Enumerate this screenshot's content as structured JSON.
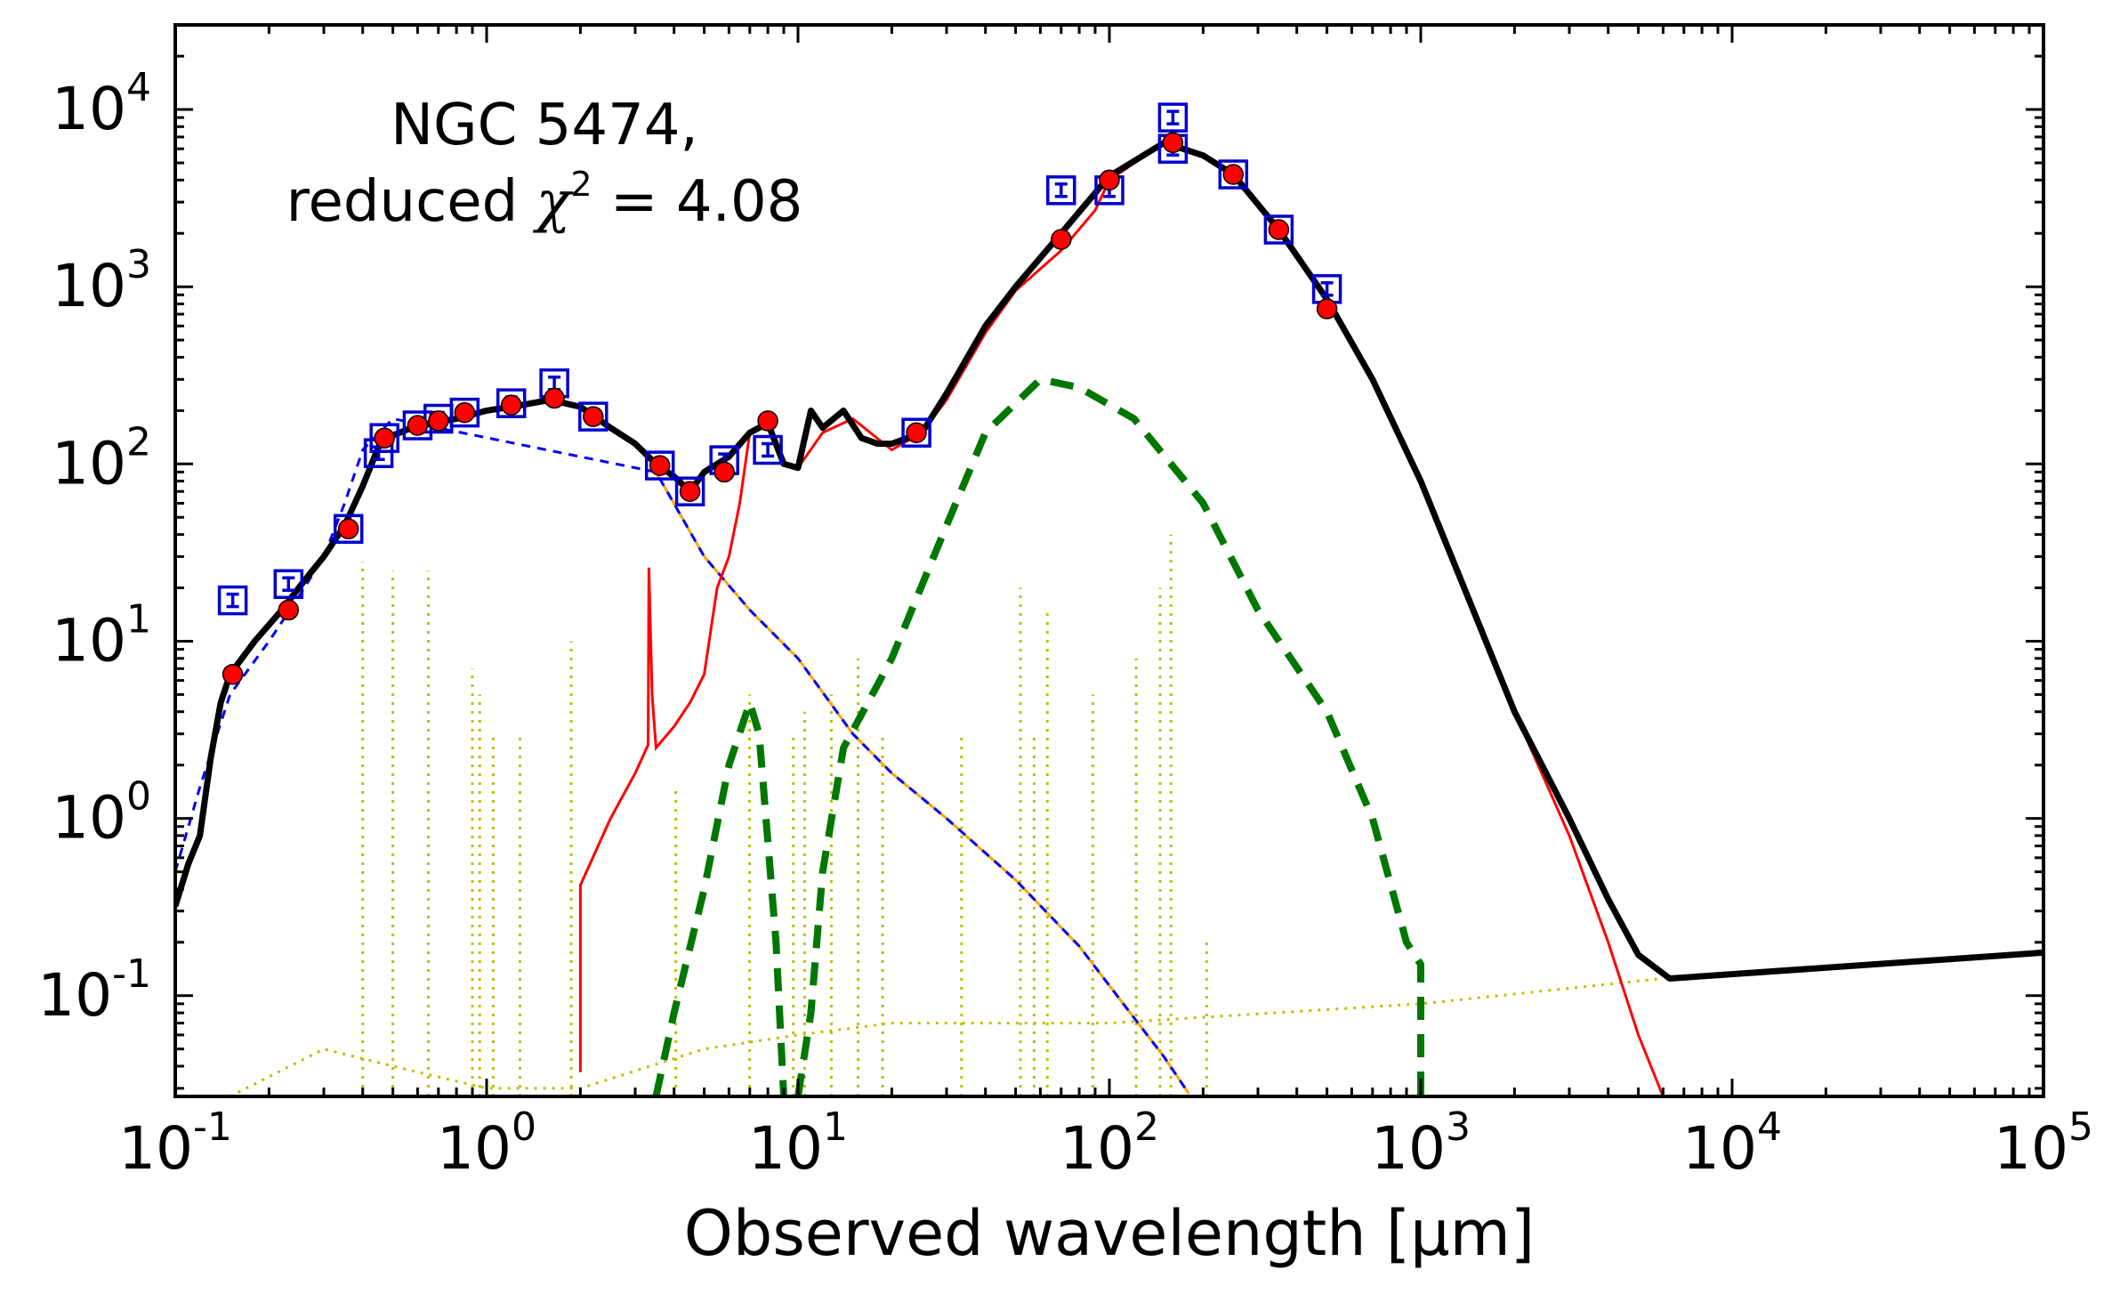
{
  "chart_data": {
    "type": "line",
    "title": "",
    "xlabel": "Observed wavelength [μm]",
    "ylabel": "",
    "xscale": "log",
    "yscale": "log",
    "xlim": [
      0.1,
      100000
    ],
    "ylim": [
      0.027,
      30000
    ],
    "grid": false,
    "annotation": {
      "line1": "NGC 5474,",
      "line2_prefix": "reduced ",
      "chi_symbol": "χ",
      "chi_exponent": "2",
      "line2_suffix": " = 4.08"
    },
    "x_ticks": [
      {
        "value": 0.1,
        "base": "10",
        "exp": "-1"
      },
      {
        "value": 1,
        "base": "10",
        "exp": "0"
      },
      {
        "value": 10,
        "base": "10",
        "exp": "1"
      },
      {
        "value": 100,
        "base": "10",
        "exp": "2"
      },
      {
        "value": 1000,
        "base": "10",
        "exp": "3"
      },
      {
        "value": 10000,
        "base": "10",
        "exp": "4"
      },
      {
        "value": 100000,
        "base": "10",
        "exp": "5"
      }
    ],
    "y_ticks": [
      {
        "value": 0.1,
        "base": "10",
        "exp": "-1"
      },
      {
        "value": 1,
        "base": "10",
        "exp": "0"
      },
      {
        "value": 10,
        "base": "10",
        "exp": "1"
      },
      {
        "value": 100,
        "base": "10",
        "exp": "2"
      },
      {
        "value": 1000,
        "base": "10",
        "exp": "3"
      },
      {
        "value": 10000,
        "base": "10",
        "exp": "4"
      }
    ],
    "colors": {
      "total_model": "#000000",
      "dust_emission": "#ff0000",
      "stellar_unattenuated": "#0000ff",
      "stellar_attenuated": "#ffa500",
      "dust_components": "#007700",
      "nebular": "#bfbf00",
      "observed": "#0000cc",
      "model_fluxes": "#ff0000"
    },
    "series": [
      {
        "name": "Total model",
        "style": "solid",
        "points": [
          [
            0.1,
            0.32
          ],
          [
            0.11,
            0.55
          ],
          [
            0.12,
            0.8
          ],
          [
            0.13,
            2.2
          ],
          [
            0.14,
            4.5
          ],
          [
            0.15,
            6.5
          ],
          [
            0.18,
            10
          ],
          [
            0.22,
            15
          ],
          [
            0.26,
            22
          ],
          [
            0.3,
            30
          ],
          [
            0.35,
            45
          ],
          [
            0.4,
            75
          ],
          [
            0.45,
            125
          ],
          [
            0.5,
            145
          ],
          [
            0.6,
            165
          ],
          [
            0.8,
            180
          ],
          [
            1.0,
            200
          ],
          [
            1.3,
            215
          ],
          [
            1.6,
            230
          ],
          [
            2.0,
            210
          ],
          [
            2.5,
            160
          ],
          [
            3.0,
            130
          ],
          [
            3.5,
            100
          ],
          [
            4.0,
            85
          ],
          [
            4.5,
            70
          ],
          [
            5.0,
            90
          ],
          [
            6.0,
            110
          ],
          [
            7.0,
            150
          ],
          [
            8.0,
            170
          ],
          [
            9.0,
            100
          ],
          [
            10.0,
            95
          ],
          [
            11.0,
            200
          ],
          [
            12.0,
            160
          ],
          [
            14.0,
            200
          ],
          [
            16.0,
            140
          ],
          [
            18.0,
            130
          ],
          [
            20.0,
            130
          ],
          [
            25.0,
            150
          ],
          [
            30.0,
            250
          ],
          [
            40.0,
            600
          ],
          [
            50.0,
            1000
          ],
          [
            70.0,
            2000
          ],
          [
            100.0,
            4200
          ],
          [
            150.0,
            6500
          ],
          [
            200.0,
            5500
          ],
          [
            250.0,
            4300
          ],
          [
            350.0,
            2100
          ],
          [
            500.0,
            850
          ],
          [
            700.0,
            300
          ],
          [
            1000.0,
            80
          ],
          [
            2000.0,
            4
          ],
          [
            3000.0,
            1
          ],
          [
            4000.0,
            0.35
          ],
          [
            5000.0,
            0.17
          ],
          [
            6300.0,
            0.125
          ],
          [
            100000.0,
            0.175
          ]
        ]
      },
      {
        "name": "Dust emission",
        "style": "solid",
        "points": [
          [
            2.0,
            0.037
          ],
          [
            2.0,
            0.42
          ],
          [
            2.5,
            1.0
          ],
          [
            3.0,
            1.8
          ],
          [
            3.3,
            2.6
          ],
          [
            3.32,
            26
          ],
          [
            3.4,
            5
          ],
          [
            3.5,
            2.5
          ],
          [
            4.0,
            3.3
          ],
          [
            4.5,
            4.5
          ],
          [
            5.0,
            6.5
          ],
          [
            5.5,
            20
          ],
          [
            6.0,
            30
          ],
          [
            6.5,
            60
          ],
          [
            7.0,
            150
          ],
          [
            8.0,
            170
          ],
          [
            9.0,
            100
          ],
          [
            10.0,
            95
          ],
          [
            12.0,
            150
          ],
          [
            15.0,
            180
          ],
          [
            20.0,
            120
          ],
          [
            25.0,
            150
          ],
          [
            30.0,
            230
          ],
          [
            40.0,
            550
          ],
          [
            50.0,
            950
          ],
          [
            70.0,
            1600
          ],
          [
            90.0,
            2700
          ],
          [
            100.0,
            4000
          ],
          [
            150.0,
            6500
          ],
          [
            200.0,
            5500
          ],
          [
            250.0,
            4300
          ],
          [
            350.0,
            2100
          ],
          [
            500.0,
            850
          ],
          [
            700.0,
            300
          ],
          [
            1000.0,
            80
          ],
          [
            2000.0,
            4
          ],
          [
            3000.0,
            0.8
          ],
          [
            4000.0,
            0.2
          ],
          [
            5000.0,
            0.06
          ],
          [
            6000.0,
            0.027
          ]
        ]
      },
      {
        "name": "Stellar attenuated",
        "style": "solid",
        "points": [
          [
            3.5,
            90
          ],
          [
            5.0,
            30
          ],
          [
            7.0,
            15
          ],
          [
            10.0,
            8
          ],
          [
            15.0,
            3
          ],
          [
            20.0,
            1.8
          ],
          [
            30.0,
            1.0
          ],
          [
            50.0,
            0.45
          ],
          [
            80.0,
            0.19
          ],
          [
            120.0,
            0.075
          ],
          [
            150.0,
            0.045
          ],
          [
            180.0,
            0.028
          ]
        ]
      },
      {
        "name": "Stellar unattenuated",
        "style": "dashed",
        "points": [
          [
            0.1,
            0.5
          ],
          [
            0.12,
            1.5
          ],
          [
            0.15,
            5
          ],
          [
            0.2,
            10
          ],
          [
            0.25,
            18
          ],
          [
            0.3,
            30
          ],
          [
            0.35,
            60
          ],
          [
            0.4,
            120
          ],
          [
            0.5,
            180
          ],
          [
            3.5,
            90
          ],
          [
            5.0,
            30
          ],
          [
            7.0,
            15
          ],
          [
            10.0,
            8
          ],
          [
            15.0,
            3
          ],
          [
            20.0,
            1.8
          ],
          [
            30.0,
            1.0
          ],
          [
            50.0,
            0.45
          ],
          [
            80.0,
            0.19
          ],
          [
            120.0,
            0.075
          ],
          [
            150.0,
            0.045
          ],
          [
            180.0,
            0.028
          ]
        ]
      },
      {
        "name": "Warm dust component",
        "style": "dashed",
        "points": [
          [
            3.5,
            0.027
          ],
          [
            4.0,
            0.08
          ],
          [
            5.0,
            0.4
          ],
          [
            6.0,
            2
          ],
          [
            7.0,
            4.5
          ],
          [
            7.5,
            3
          ],
          [
            8.5,
            0.2
          ],
          [
            9.0,
            0.027
          ]
        ]
      },
      {
        "name": "Cold dust component",
        "style": "dashed",
        "points": [
          [
            10.0,
            0.027
          ],
          [
            11.0,
            0.08
          ],
          [
            12.0,
            0.5
          ],
          [
            14.0,
            2.5
          ],
          [
            20.0,
            8
          ],
          [
            30.0,
            45
          ],
          [
            40.0,
            150
          ],
          [
            60.0,
            300
          ],
          [
            80.0,
            270
          ],
          [
            120.0,
            180
          ],
          [
            200.0,
            60
          ],
          [
            300.0,
            15
          ],
          [
            500.0,
            4
          ],
          [
            700.0,
            1
          ],
          [
            900.0,
            0.2
          ],
          [
            1000.0,
            0.15
          ],
          [
            1000.0,
            0.027
          ]
        ]
      },
      {
        "name": "Nebular emission",
        "style": "dotted",
        "points": [
          [
            0.15,
            0.027
          ],
          [
            0.3,
            0.05
          ],
          [
            0.5,
            0.04
          ],
          [
            1.0,
            0.03
          ],
          [
            2.0,
            0.03
          ],
          [
            5.0,
            0.05
          ],
          [
            10.0,
            0.06
          ],
          [
            20.0,
            0.07
          ],
          [
            100.0,
            0.07
          ],
          [
            1000.0,
            0.09
          ],
          [
            6000.0,
            0.125
          ]
        ],
        "lines": [
          [
            0.4,
            28
          ],
          [
            0.5,
            25
          ],
          [
            0.65,
            25
          ],
          [
            0.9,
            7
          ],
          [
            0.95,
            5
          ],
          [
            1.05,
            3
          ],
          [
            1.28,
            3
          ],
          [
            1.87,
            10
          ],
          [
            4.05,
            1.5
          ],
          [
            6.99,
            5
          ],
          [
            9.66,
            3
          ],
          [
            10.5,
            4
          ],
          [
            12.8,
            5
          ],
          [
            15.6,
            8
          ],
          [
            18.7,
            3
          ],
          [
            33.5,
            3
          ],
          [
            51.8,
            20
          ],
          [
            57.3,
            3
          ],
          [
            63.2,
            15
          ],
          [
            88.4,
            5
          ],
          [
            121.9,
            8
          ],
          [
            145.5,
            20
          ],
          [
            157.7,
            40
          ],
          [
            205.2,
            0.2
          ]
        ]
      },
      {
        "name": "Observed fluxes",
        "style": "markers",
        "points": [
          [
            0.153,
            17
          ],
          [
            0.231,
            21
          ],
          [
            0.36,
            43
          ],
          [
            0.45,
            115
          ],
          [
            0.47,
            140
          ],
          [
            0.6,
            165
          ],
          [
            0.7,
            180
          ],
          [
            0.85,
            195
          ],
          [
            1.2,
            220
          ],
          [
            1.65,
            285
          ],
          [
            2.2,
            185
          ],
          [
            3.6,
            98
          ],
          [
            4.5,
            70
          ],
          [
            5.8,
            105
          ],
          [
            8.0,
            120
          ],
          [
            24.0,
            150
          ],
          [
            70.0,
            3500
          ],
          [
            100.0,
            3500
          ],
          [
            160.0,
            9000
          ],
          [
            160.0,
            6000
          ],
          [
            250.0,
            4300
          ],
          [
            350.0,
            2100
          ],
          [
            500.0,
            970
          ]
        ]
      },
      {
        "name": "Model fluxes",
        "style": "markers",
        "points": [
          [
            0.153,
            6.5
          ],
          [
            0.231,
            15
          ],
          [
            0.36,
            43
          ],
          [
            0.47,
            140
          ],
          [
            0.6,
            165
          ],
          [
            0.7,
            175
          ],
          [
            0.85,
            195
          ],
          [
            1.2,
            215
          ],
          [
            1.65,
            235
          ],
          [
            2.2,
            185
          ],
          [
            3.6,
            98
          ],
          [
            4.5,
            70
          ],
          [
            5.8,
            90
          ],
          [
            8.0,
            175
          ],
          [
            24.0,
            150
          ],
          [
            70.0,
            1850
          ],
          [
            100.0,
            4000
          ],
          [
            160.0,
            6500
          ],
          [
            250.0,
            4300
          ],
          [
            350.0,
            2100
          ],
          [
            500.0,
            750
          ]
        ]
      }
    ]
  }
}
